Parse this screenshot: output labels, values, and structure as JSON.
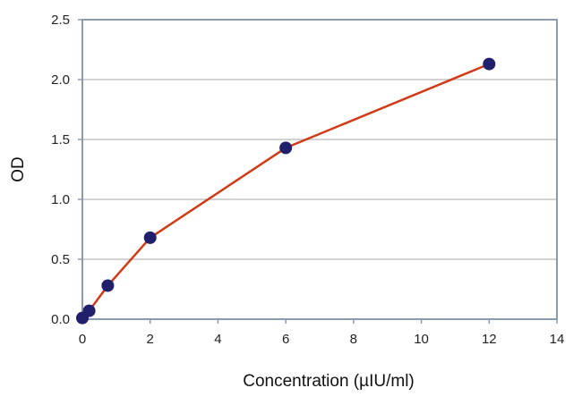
{
  "chart_data": {
    "type": "line",
    "title": "",
    "xlabel": "Concentration (µIU/ml)",
    "ylabel": "OD",
    "xlim": [
      0,
      14
    ],
    "ylim": [
      0,
      2.5
    ],
    "xticks": [
      "0",
      "2",
      "4",
      "6",
      "8",
      "10",
      "12",
      "14"
    ],
    "yticks": [
      "0.0",
      "0.5",
      "1.0",
      "1.5",
      "2.0",
      "2.5"
    ],
    "grid": "horizontal",
    "legend": "none",
    "series": [
      {
        "x": [
          0,
          0.2,
          0.75,
          2,
          6,
          12
        ],
        "y": [
          0.01,
          0.07,
          0.28,
          0.68,
          1.43,
          2.13
        ]
      }
    ],
    "colors": {
      "line": "#d23a16",
      "marker": "#1f1f6b",
      "frame": "#8a9bb0",
      "grid": "#c4c4c4"
    }
  }
}
